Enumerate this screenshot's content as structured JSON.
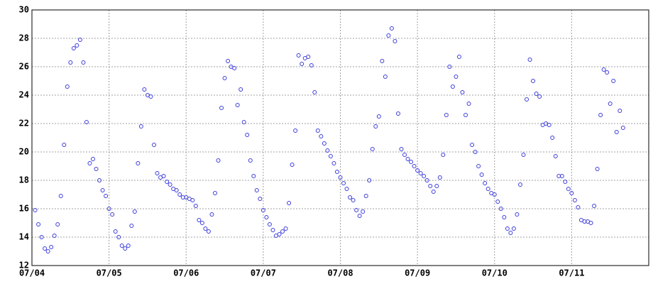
{
  "chart_data": {
    "type": "scatter",
    "x": [
      1,
      2,
      3,
      4,
      5,
      6,
      7,
      8,
      9,
      10,
      11,
      12,
      13,
      14,
      15,
      16,
      17,
      18,
      19,
      20,
      21,
      22,
      23,
      24,
      25,
      26,
      27,
      28,
      29,
      30,
      31,
      32,
      33,
      34,
      35,
      36,
      37,
      38,
      39,
      40,
      41,
      42,
      43,
      44,
      45,
      46,
      47,
      48,
      49,
      50,
      51,
      52,
      53,
      54,
      55,
      56,
      57,
      58,
      59,
      60,
      61,
      62,
      63,
      64,
      65,
      66,
      67,
      68,
      69,
      70,
      71,
      72,
      73,
      74,
      75,
      76,
      77,
      78,
      79,
      80,
      81,
      82,
      83,
      84,
      85,
      86,
      87,
      88,
      89,
      90,
      91,
      92,
      93,
      94,
      95,
      96,
      97,
      98,
      99,
      100,
      101,
      102,
      103,
      104,
      105,
      106,
      107,
      108,
      109,
      110,
      111,
      112,
      113,
      114,
      115,
      116,
      117,
      118,
      119,
      120,
      121,
      122,
      123,
      124,
      125,
      126,
      127,
      128,
      129,
      130,
      131,
      132,
      133,
      134,
      135,
      136,
      137,
      138,
      139,
      140,
      141,
      142,
      143,
      144,
      145,
      146,
      147,
      148,
      149,
      150,
      151,
      152,
      153,
      154,
      155,
      156,
      157,
      158,
      159,
      160,
      161,
      162,
      163,
      164,
      165,
      166,
      167,
      168,
      169,
      170,
      171,
      172,
      173,
      174,
      175,
      176,
      177,
      178,
      179,
      180,
      181,
      182,
      183,
      184
    ],
    "series": [
      {
        "color": "#3c3cdc",
        "values": [
          15.9,
          14.9,
          14.0,
          13.2,
          13.0,
          13.3,
          14.1,
          14.9,
          16.9,
          20.5,
          24.6,
          26.3,
          27.3,
          27.5,
          27.9,
          26.3,
          22.1,
          19.2,
          19.5,
          18.8,
          18.0,
          17.3,
          16.9,
          16.0,
          15.6,
          14.4,
          14.0,
          13.4,
          13.2,
          13.4,
          14.8,
          15.8,
          19.2,
          21.8,
          24.4,
          24.0,
          23.9,
          20.5,
          18.5,
          18.2,
          18.3,
          17.9,
          17.7,
          17.4,
          17.3,
          17.0,
          16.8,
          16.8,
          16.7,
          16.6,
          16.2,
          15.2,
          15.0,
          14.6,
          14.4,
          15.6,
          17.1,
          19.4,
          23.1,
          25.2,
          26.4,
          26.0,
          25.9,
          23.3,
          24.4,
          22.1,
          21.2,
          19.4,
          18.3,
          17.3,
          16.7,
          15.9,
          15.4,
          14.9,
          14.5,
          14.1,
          14.2,
          14.4,
          14.6,
          16.4,
          19.1,
          21.5,
          26.8,
          26.2,
          26.6,
          26.7,
          26.1,
          24.2,
          21.5,
          21.1,
          20.6,
          20.1,
          19.7,
          19.2,
          18.6,
          18.2,
          17.8,
          17.4,
          16.8,
          16.6,
          15.9,
          15.5,
          15.8,
          16.9,
          18.0,
          20.2,
          21.8,
          22.5,
          26.4,
          25.3,
          28.2,
          28.7,
          27.8,
          22.7,
          20.2,
          19.8,
          19.5,
          19.3,
          19.0,
          18.7,
          18.5,
          18.3,
          18.0,
          17.6,
          17.2,
          17.6,
          18.2,
          19.8,
          22.6,
          26.0,
          24.6,
          25.3,
          26.7,
          24.2,
          22.6,
          23.4,
          20.5,
          20.0,
          19.0,
          18.4,
          17.8,
          17.4,
          17.1,
          17.0,
          16.5,
          16.0,
          15.4,
          14.6,
          14.3,
          14.6,
          15.6,
          17.7,
          19.8,
          23.7,
          26.5,
          25.0,
          24.1,
          23.9,
          21.9,
          22.0,
          21.9,
          21.0,
          19.7,
          18.3,
          18.3,
          17.9,
          17.4,
          17.1,
          16.6,
          16.1,
          15.2,
          15.1,
          15.1,
          15.0,
          16.2,
          18.8,
          22.6,
          25.8,
          25.6,
          23.4,
          25.0,
          21.4,
          22.9,
          21.7
        ]
      }
    ],
    "xlim": [
      0,
      192
    ],
    "xticks": [
      {
        "value": 0,
        "label": "07/04"
      },
      {
        "value": 24,
        "label": "07/05"
      },
      {
        "value": 48,
        "label": "07/06"
      },
      {
        "value": 72,
        "label": "07/07"
      },
      {
        "value": 96,
        "label": "07/08"
      },
      {
        "value": 120,
        "label": "07/09"
      },
      {
        "value": 144,
        "label": "07/10"
      },
      {
        "value": 168,
        "label": "07/11"
      }
    ],
    "ylim": [
      12,
      30
    ],
    "yticks": [
      12,
      14,
      16,
      18,
      20,
      22,
      24,
      26,
      28,
      30
    ],
    "grid": true
  }
}
